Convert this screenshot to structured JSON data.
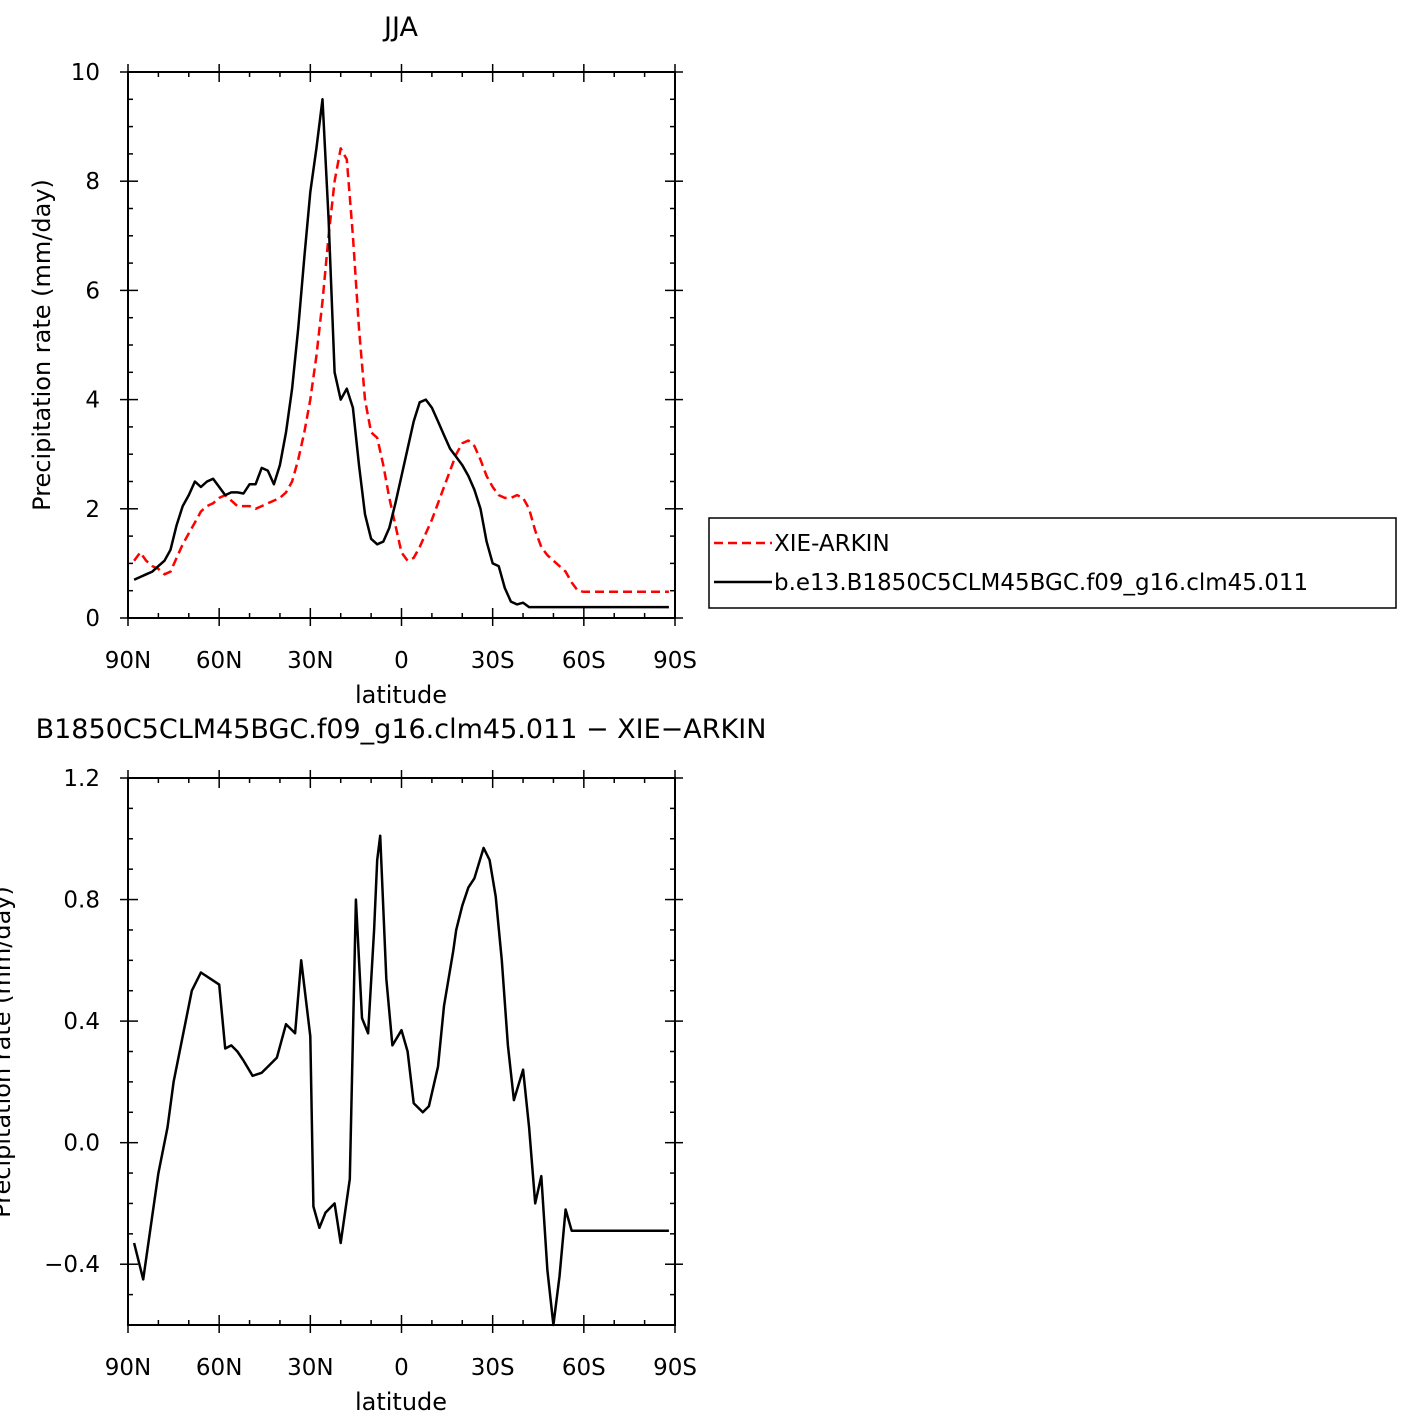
{
  "chart_data": [
    {
      "type": "line",
      "title": "JJA",
      "xlabel": "latitude",
      "ylabel": "Precipitation rate (mm/day)",
      "x_tick_labels": [
        "90N",
        "60N",
        "30N",
        "0",
        "30S",
        "60S",
        "90S"
      ],
      "x_ticks": [
        -90,
        -60,
        -30,
        0,
        30,
        60,
        90
      ],
      "xlim": [
        -90,
        90
      ],
      "ylim": [
        0,
        10
      ],
      "y_ticks": [
        0,
        2,
        4,
        6,
        8,
        10
      ],
      "y_tick_labels": [
        "0",
        "2",
        "4",
        "6",
        "8",
        "10"
      ],
      "legend": "outside-right",
      "series": [
        {
          "name": "XIE-ARKIN",
          "color": "#ff0000",
          "dash": true,
          "x": [
            -88,
            -86,
            -84,
            -82,
            -80,
            -78,
            -76,
            -74,
            -72,
            -70,
            -68,
            -66,
            -64,
            -62,
            -60,
            -58,
            -56,
            -54,
            -52,
            -50,
            -48,
            -46,
            -44,
            -42,
            -40,
            -38,
            -36,
            -34,
            -32,
            -30,
            -28,
            -26,
            -24,
            -22,
            -20,
            -18,
            -16,
            -14,
            -12,
            -10,
            -8,
            -6,
            -4,
            -2,
            0,
            2,
            4,
            6,
            8,
            10,
            12,
            14,
            16,
            18,
            20,
            22,
            24,
            26,
            28,
            30,
            32,
            34,
            36,
            38,
            40,
            42,
            44,
            46,
            48,
            50,
            52,
            54,
            56,
            58,
            60,
            62,
            64,
            66,
            68,
            70,
            72,
            74,
            76,
            78,
            80,
            82,
            84,
            86,
            88
          ],
          "y": [
            1.05,
            1.2,
            1.05,
            0.95,
            0.9,
            0.8,
            0.85,
            1.1,
            1.35,
            1.55,
            1.75,
            1.95,
            2.05,
            2.1,
            2.2,
            2.25,
            2.15,
            2.05,
            2.05,
            2.05,
            2.0,
            2.05,
            2.1,
            2.15,
            2.2,
            2.3,
            2.5,
            2.9,
            3.4,
            4.0,
            4.8,
            5.8,
            7.0,
            8.0,
            8.6,
            8.4,
            7.0,
            5.3,
            4.0,
            3.4,
            3.3,
            2.8,
            2.2,
            1.7,
            1.2,
            1.05,
            1.1,
            1.3,
            1.55,
            1.8,
            2.1,
            2.4,
            2.7,
            3.0,
            3.2,
            3.25,
            3.15,
            2.9,
            2.6,
            2.4,
            2.25,
            2.2,
            2.2,
            2.25,
            2.2,
            2.0,
            1.6,
            1.3,
            1.15,
            1.05,
            0.95,
            0.85,
            0.65,
            0.5,
            0.48,
            0.48,
            0.48,
            0.48,
            0.48,
            0.48,
            0.48,
            0.48,
            0.48,
            0.48,
            0.48,
            0.48,
            0.48,
            0.48,
            0.48
          ]
        },
        {
          "name": "b.e13.B1850C5CLM45BGC.f09_g16.clm45.011",
          "color": "#000000",
          "dash": false,
          "x": [
            -88,
            -86,
            -84,
            -82,
            -80,
            -78,
            -76,
            -74,
            -72,
            -70,
            -68,
            -66,
            -64,
            -62,
            -60,
            -58,
            -56,
            -54,
            -52,
            -50,
            -48,
            -46,
            -44,
            -42,
            -40,
            -38,
            -36,
            -34,
            -32,
            -30,
            -28,
            -26,
            -24,
            -22,
            -20,
            -18,
            -16,
            -14,
            -12,
            -10,
            -8,
            -6,
            -4,
            -2,
            0,
            2,
            4,
            6,
            8,
            10,
            12,
            14,
            16,
            18,
            20,
            22,
            24,
            26,
            28,
            30,
            32,
            34,
            36,
            38,
            40,
            42,
            44,
            46,
            48,
            50,
            52,
            54,
            56,
            58,
            60,
            62,
            64,
            66,
            68,
            70,
            72,
            74,
            76,
            78,
            80,
            82,
            84,
            86,
            88
          ],
          "y": [
            0.7,
            0.75,
            0.8,
            0.85,
            0.95,
            1.05,
            1.25,
            1.7,
            2.05,
            2.25,
            2.5,
            2.4,
            2.5,
            2.55,
            2.4,
            2.25,
            2.3,
            2.3,
            2.28,
            2.45,
            2.45,
            2.75,
            2.7,
            2.45,
            2.8,
            3.4,
            4.2,
            5.3,
            6.6,
            7.8,
            8.6,
            9.5,
            7.3,
            4.5,
            4.0,
            4.2,
            3.85,
            2.8,
            1.9,
            1.45,
            1.35,
            1.4,
            1.65,
            2.1,
            2.6,
            3.1,
            3.6,
            3.95,
            4.0,
            3.85,
            3.6,
            3.35,
            3.1,
            2.95,
            2.8,
            2.6,
            2.35,
            2.0,
            1.4,
            1.0,
            0.95,
            0.55,
            0.3,
            0.25,
            0.28,
            0.2,
            0.2,
            0.2,
            0.2,
            0.2,
            0.2,
            0.2,
            0.2,
            0.2,
            0.2,
            0.2,
            0.2,
            0.2,
            0.2,
            0.2,
            0.2,
            0.2,
            0.2,
            0.2,
            0.2,
            0.2,
            0.2,
            0.2,
            0.2
          ]
        }
      ]
    },
    {
      "type": "line",
      "title": "B1850C5CLM45BGC.f09_g16.clm45.011 − XIE−ARKIN",
      "xlabel": "latitude",
      "ylabel": "Precipitation rate (mm/day)",
      "x_tick_labels": [
        "90N",
        "60N",
        "30N",
        "0",
        "30S",
        "60S",
        "90S"
      ],
      "x_ticks": [
        -90,
        -60,
        -30,
        0,
        30,
        60,
        90
      ],
      "xlim": [
        -90,
        90
      ],
      "ylim": [
        -0.6,
        1.2
      ],
      "y_ticks": [
        -0.4,
        0.0,
        0.4,
        0.8,
        1.2
      ],
      "y_tick_labels": [
        "−0.4",
        "0.0",
        "0.4",
        "0.8",
        "1.2"
      ],
      "series": [
        {
          "color": "#000000",
          "x": [
            -88,
            -85,
            -82,
            -80,
            -77,
            -75,
            -72,
            -69,
            -66,
            -63,
            -60,
            -58,
            -56,
            -54,
            -52,
            -49,
            -46,
            -43,
            -41,
            -38,
            -35,
            -33,
            -30,
            -29,
            -27,
            -25,
            -22,
            -20,
            -17,
            -15,
            -13,
            -11,
            -9,
            -8,
            -7,
            -5,
            -3,
            0,
            2,
            4,
            7,
            9,
            12,
            14,
            17,
            18,
            20,
            22,
            24,
            27,
            29,
            31,
            33,
            35,
            37,
            40,
            42,
            44,
            46,
            48,
            50,
            52,
            54,
            56,
            58,
            60,
            62,
            64,
            66,
            68,
            70,
            72,
            74,
            76,
            78,
            80,
            82,
            84,
            86,
            88
          ],
          "y": [
            -0.33,
            -0.45,
            -0.24,
            -0.1,
            0.05,
            0.2,
            0.35,
            0.5,
            0.56,
            0.54,
            0.52,
            0.31,
            0.32,
            0.3,
            0.27,
            0.22,
            0.23,
            0.26,
            0.28,
            0.39,
            0.36,
            0.6,
            0.35,
            -0.21,
            -0.28,
            -0.23,
            -0.2,
            -0.33,
            -0.12,
            0.8,
            0.41,
            0.36,
            0.7,
            0.93,
            1.01,
            0.54,
            0.32,
            0.37,
            0.3,
            0.13,
            0.1,
            0.12,
            0.25,
            0.45,
            0.63,
            0.7,
            0.78,
            0.84,
            0.87,
            0.97,
            0.93,
            0.81,
            0.6,
            0.32,
            0.14,
            0.24,
            0.05,
            -0.2,
            -0.11,
            -0.42,
            -0.6,
            -0.44,
            -0.22,
            -0.29,
            -0.29,
            -0.29,
            -0.29,
            -0.29,
            -0.29,
            -0.29,
            -0.29,
            -0.29,
            -0.29,
            -0.29,
            -0.29,
            -0.29,
            -0.29,
            -0.29,
            -0.29,
            -0.29
          ]
        }
      ]
    }
  ]
}
